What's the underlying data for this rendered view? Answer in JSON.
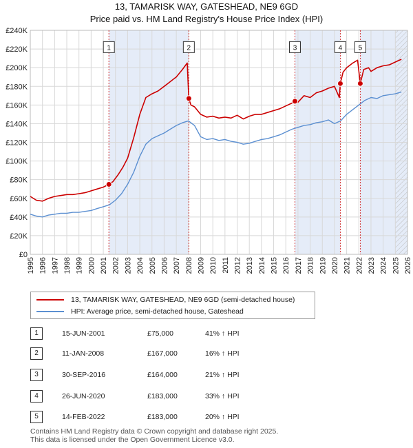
{
  "chart_data": {
    "type": "line",
    "title": "13, TAMARISK WAY, GATESHEAD, NE9 6GD",
    "subtitle": "Price paid vs. HM Land Registry's House Price Index (HPI)",
    "xlabel": "",
    "ylabel": "",
    "xlim": [
      1995,
      2026
    ],
    "ylim": [
      0,
      240000
    ],
    "yticks": [
      0,
      20000,
      40000,
      60000,
      80000,
      100000,
      120000,
      140000,
      160000,
      180000,
      200000,
      220000,
      240000
    ],
    "ytick_labels": [
      "£0",
      "£20K",
      "£40K",
      "£60K",
      "£80K",
      "£100K",
      "£120K",
      "£140K",
      "£160K",
      "£180K",
      "£200K",
      "£220K",
      "£240K"
    ],
    "xticks": [
      1995,
      1996,
      1997,
      1998,
      1999,
      2000,
      2001,
      2002,
      2003,
      2004,
      2005,
      2006,
      2007,
      2008,
      2009,
      2010,
      2011,
      2012,
      2013,
      2014,
      2015,
      2016,
      2017,
      2018,
      2019,
      2020,
      2021,
      2022,
      2023,
      2024,
      2025,
      2026
    ],
    "xtick_labels": [
      "1995",
      "1996",
      "1997",
      "1998",
      "1999",
      "2000",
      "2001",
      "2002",
      "2003",
      "2004",
      "2005",
      "2006",
      "2007",
      "2008",
      "2009",
      "2010",
      "2011",
      "2012",
      "2013",
      "2014",
      "2015",
      "2016",
      "2017",
      "2018",
      "2019",
      "2020",
      "2021",
      "2022",
      "2023",
      "2024",
      "2025",
      "2026"
    ],
    "grid": true,
    "colors": {
      "property": "#cc0000",
      "hpi": "#5b8fd1",
      "shade": "#dce6f5",
      "hatch": "#bbbbbb"
    },
    "series": [
      {
        "name": "13, TAMARISK WAY, GATESHEAD, NE9 6GD (semi-detached house)",
        "color": "#cc0000",
        "x": [
          1995.0,
          1995.5,
          1996.0,
          1996.5,
          1997.0,
          1997.5,
          1998.0,
          1998.5,
          1999.0,
          1999.5,
          2000.0,
          2000.5,
          2001.0,
          2001.46,
          2001.8,
          2002.2,
          2002.6,
          2003.0,
          2003.5,
          2004.0,
          2004.5,
          2005.0,
          2005.5,
          2006.0,
          2006.5,
          2007.0,
          2007.5,
          2007.9,
          2008.03,
          2008.2,
          2008.5,
          2009.0,
          2009.5,
          2010.0,
          2010.5,
          2011.0,
          2011.5,
          2012.0,
          2012.5,
          2013.0,
          2013.5,
          2014.0,
          2014.5,
          2015.0,
          2015.5,
          2016.0,
          2016.5,
          2016.75,
          2017.0,
          2017.5,
          2018.0,
          2018.5,
          2019.0,
          2019.5,
          2020.0,
          2020.4,
          2020.48,
          2020.7,
          2021.0,
          2021.5,
          2021.9,
          2022.12,
          2022.4,
          2022.8,
          2023.0,
          2023.5,
          2024.0,
          2024.5,
          2025.0,
          2025.5
        ],
        "values": [
          62000,
          58000,
          57000,
          60000,
          62000,
          63000,
          64000,
          64000,
          65000,
          66000,
          68000,
          70000,
          72000,
          75000,
          78000,
          85000,
          93000,
          103000,
          125000,
          150000,
          168000,
          172000,
          175000,
          180000,
          185000,
          190000,
          198000,
          205000,
          167000,
          160000,
          158000,
          150000,
          147000,
          148000,
          146000,
          147000,
          146000,
          149000,
          145000,
          148000,
          150000,
          150000,
          152000,
          154000,
          156000,
          159000,
          162000,
          164000,
          163000,
          170000,
          168000,
          173000,
          175000,
          178000,
          180000,
          168000,
          183000,
          195000,
          200000,
          205000,
          208000,
          183000,
          198000,
          200000,
          196000,
          200000,
          202000,
          203000,
          206000,
          209000
        ]
      },
      {
        "name": "HPI: Average price, semi-detached house, Gateshead",
        "color": "#5b8fd1",
        "x": [
          1995.0,
          1995.5,
          1996.0,
          1996.5,
          1997.0,
          1997.5,
          1998.0,
          1998.5,
          1999.0,
          1999.5,
          2000.0,
          2000.5,
          2001.0,
          2001.5,
          2002.0,
          2002.5,
          2003.0,
          2003.5,
          2004.0,
          2004.5,
          2005.0,
          2005.5,
          2006.0,
          2006.5,
          2007.0,
          2007.5,
          2008.0,
          2008.5,
          2009.0,
          2009.5,
          2010.0,
          2010.5,
          2011.0,
          2011.5,
          2012.0,
          2012.5,
          2013.0,
          2013.5,
          2014.0,
          2014.5,
          2015.0,
          2015.5,
          2016.0,
          2016.5,
          2017.0,
          2017.5,
          2018.0,
          2018.5,
          2019.0,
          2019.5,
          2020.0,
          2020.5,
          2021.0,
          2021.5,
          2022.0,
          2022.5,
          2023.0,
          2023.5,
          2024.0,
          2024.5,
          2025.0,
          2025.5
        ],
        "values": [
          43000,
          41000,
          40000,
          42000,
          43000,
          44000,
          44000,
          45000,
          45000,
          46000,
          47000,
          49000,
          51000,
          53000,
          58000,
          65000,
          75000,
          88000,
          105000,
          118000,
          124000,
          127000,
          130000,
          134000,
          138000,
          141000,
          143000,
          138000,
          126000,
          123000,
          124000,
          122000,
          123000,
          121000,
          120000,
          118000,
          119000,
          121000,
          123000,
          124000,
          126000,
          128000,
          131000,
          134000,
          136000,
          138000,
          139000,
          141000,
          142000,
          144000,
          140000,
          143000,
          150000,
          155000,
          160000,
          165000,
          168000,
          167000,
          170000,
          171000,
          172000,
          174000
        ]
      }
    ],
    "sale_markers": [
      {
        "label": "1",
        "x": 2001.46,
        "value": 75000
      },
      {
        "label": "2",
        "x": 2008.03,
        "value": 167000
      },
      {
        "label": "3",
        "x": 2016.75,
        "value": 164000
      },
      {
        "label": "4",
        "x": 2020.48,
        "value": 183000
      },
      {
        "label": "5",
        "x": 2022.12,
        "value": 183000
      }
    ],
    "marker_box_value": 222000,
    "shaded_ranges": [
      [
        2001.46,
        2008.03
      ],
      [
        2016.75,
        2020.48
      ],
      [
        2022.12,
        2026.0
      ]
    ],
    "hatched_range": [
      2025.0,
      2026.0
    ]
  },
  "legend": {
    "property_label": "13, TAMARISK WAY, GATESHEAD, NE9 6GD (semi-detached house)",
    "hpi_label": "HPI: Average price, semi-detached house, Gateshead"
  },
  "sales": [
    {
      "num": "1",
      "date": "15-JUN-2001",
      "price": "£75,000",
      "hpi": "41% ↑ HPI"
    },
    {
      "num": "2",
      "date": "11-JAN-2008",
      "price": "£167,000",
      "hpi": "16% ↑ HPI"
    },
    {
      "num": "3",
      "date": "30-SEP-2016",
      "price": "£164,000",
      "hpi": "21% ↑ HPI"
    },
    {
      "num": "4",
      "date": "26-JUN-2020",
      "price": "£183,000",
      "hpi": "33% ↑ HPI"
    },
    {
      "num": "5",
      "date": "14-FEB-2022",
      "price": "£183,000",
      "hpi": "20% ↑ HPI"
    }
  ],
  "footer": {
    "line1": "Contains HM Land Registry data © Crown copyright and database right 2025.",
    "line2": "This data is licensed under the Open Government Licence v3.0."
  }
}
